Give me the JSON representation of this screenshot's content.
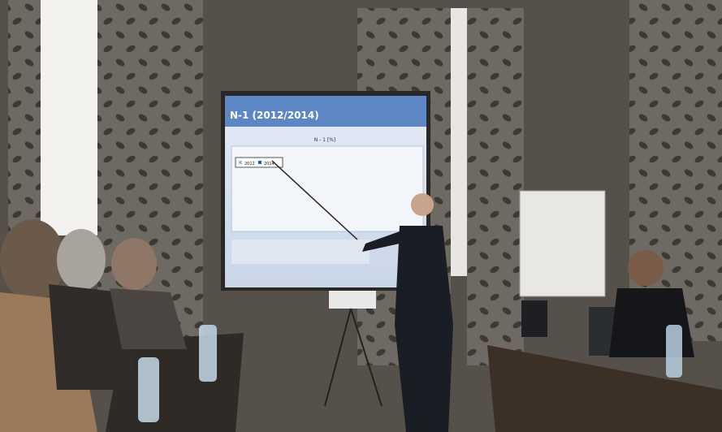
{
  "slide": {
    "title": "N-1 (2012/2014)",
    "axis_title": "N - 1 [%]",
    "legend": [
      "2012",
      "2014"
    ]
  }
}
